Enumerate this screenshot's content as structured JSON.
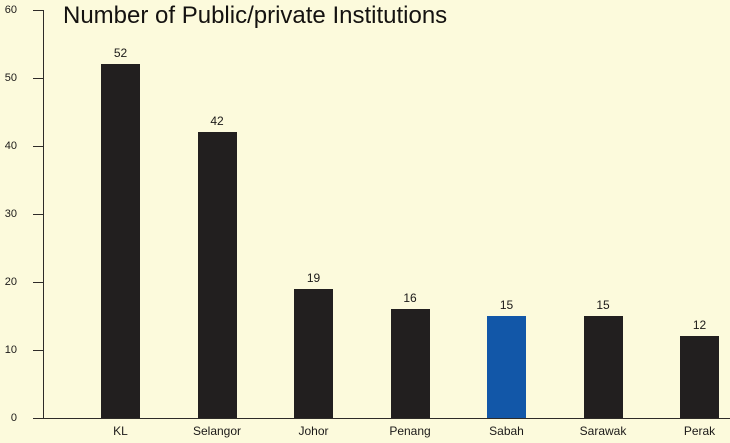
{
  "chart_data": {
    "type": "bar",
    "title": "Number of Public/private Institutions",
    "categories": [
      "KL",
      "Selangor",
      "Johor",
      "Penang",
      "Sabah",
      "Sarawak",
      "Perak"
    ],
    "values": [
      52,
      42,
      19,
      16,
      15,
      15,
      12
    ],
    "value_labels_shown": true,
    "highlight_index": 4,
    "highlight_category": "Sabah",
    "xlabel": "",
    "ylabel": "",
    "ylim": [
      0,
      60
    ],
    "yticks": [
      0,
      10,
      20,
      30,
      40,
      50,
      60
    ],
    "grid": false,
    "legend": "none",
    "colors": {
      "background": "#fcfadc",
      "bar": "#221f1f",
      "highlight_bar": "#1257a8",
      "axis": "#2e2b28",
      "text": "#1b1918"
    }
  }
}
